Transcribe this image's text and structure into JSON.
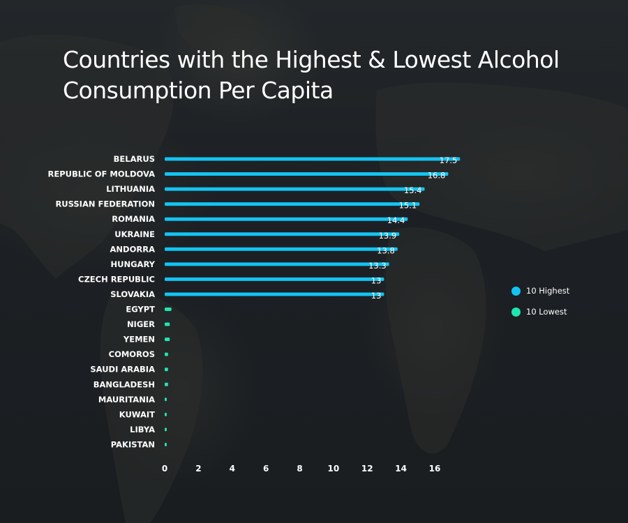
{
  "chart_data": {
    "type": "bar",
    "orientation": "horizontal",
    "title": "Countries with the Highest & Lowest Alcohol Consumption Per Capita",
    "categories": [
      "BELARUS",
      "REPUBLIC OF MOLDOVA",
      "LITHUANIA",
      "RUSSIAN FEDERATION",
      "ROMANIA",
      "UKRAINE",
      "ANDORRA",
      "HUNGARY",
      "CZECH REPUBLIC",
      "SLOVAKIA",
      "EGYPT",
      "NIGER",
      "YEMEN",
      "COMOROS",
      "SAUDI ARABIA",
      "BANGLADESH",
      "MAURITANIA",
      "KUWAIT",
      "LIBYA",
      "PAKISTAN"
    ],
    "series": [
      {
        "name": "10 Highest",
        "color": "#13c4f2",
        "values": [
          17.5,
          16.8,
          15.4,
          15.1,
          14.4,
          13.9,
          13.8,
          13.3,
          13,
          13,
          null,
          null,
          null,
          null,
          null,
          null,
          null,
          null,
          null,
          null
        ],
        "labels": [
          "17.5",
          "16.8",
          "15.4",
          "15.1",
          "14.4",
          "13.9",
          "13.8",
          "13.3",
          "13",
          "13"
        ]
      },
      {
        "name": "10 Lowest",
        "color": "#1ee6b2",
        "values": [
          null,
          null,
          null,
          null,
          null,
          null,
          null,
          null,
          null,
          null,
          0.4,
          0.3,
          0.3,
          0.2,
          0.2,
          0.2,
          0.1,
          0.1,
          0.1,
          0.1
        ]
      }
    ],
    "xlim": [
      0,
      18
    ],
    "xticks": [
      "0",
      "2",
      "4",
      "6",
      "8",
      "10",
      "12",
      "14",
      "16"
    ],
    "grid": false,
    "legend_position": "right"
  }
}
